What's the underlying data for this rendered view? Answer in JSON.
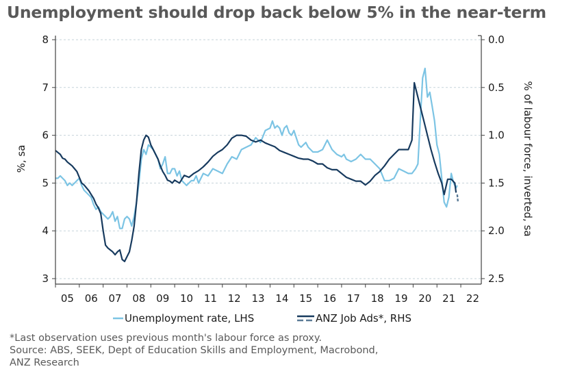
{
  "title": "Unemployment should drop back below 5% in the near-term",
  "footnotes": [
    "*Last observation uses previous month's labour force as proxy.",
    "Source: ABS, SEEK, Dept of Education Skills and Employment, Macrobond,",
    "ANZ Research"
  ],
  "colors": {
    "unemployment": "#7cc4e4",
    "job_ads": "#173a5e",
    "grid": "#c5d3da",
    "axis": "#404040",
    "title": "#595959"
  },
  "chart_data": {
    "type": "line",
    "title": "Unemployment should drop back below 5% in the near-term",
    "xlabel": "",
    "ylabel": "%, sa",
    "ylabel_right": "% of labour force, inverted, sa",
    "xlim": [
      2005.0,
      2022.86
    ],
    "ylim": [
      3,
      8
    ],
    "ylim_right": [
      0.0,
      2.5
    ],
    "right_axis_inverted": true,
    "grid": true,
    "legend_position": "bottom",
    "x_tick_labels": [
      "05",
      "06",
      "07",
      "08",
      "09",
      "10",
      "11",
      "12",
      "13",
      "14",
      "15",
      "16",
      "17",
      "18",
      "19",
      "20",
      "21",
      "22"
    ],
    "y_tick_labels": [
      "3",
      "4",
      "5",
      "6",
      "7",
      "8"
    ],
    "y_ticks": [
      3,
      4,
      5,
      6,
      7,
      8
    ],
    "y_right_tick_labels": [
      "0.0",
      "0.5",
      "1.0",
      "1.5",
      "2.0",
      "2.5"
    ],
    "y_right_ticks": [
      0.0,
      0.5,
      1.0,
      1.5,
      2.0,
      2.5
    ],
    "series": [
      {
        "name": "Unemployment rate, LHS",
        "axis": "left",
        "x": [
          2005.0,
          2005.1,
          2005.2,
          2005.3,
          2005.4,
          2005.5,
          2005.6,
          2005.7,
          2005.8,
          2005.9,
          2006.0,
          2006.1,
          2006.2,
          2006.3,
          2006.4,
          2006.5,
          2006.6,
          2006.7,
          2006.8,
          2006.9,
          2007.0,
          2007.1,
          2007.2,
          2007.3,
          2007.4,
          2007.5,
          2007.6,
          2007.7,
          2007.8,
          2007.9,
          2008.0,
          2008.1,
          2008.2,
          2008.3,
          2008.4,
          2008.5,
          2008.6,
          2008.7,
          2008.8,
          2008.9,
          2009.0,
          2009.1,
          2009.2,
          2009.3,
          2009.4,
          2009.5,
          2009.6,
          2009.7,
          2009.8,
          2009.9,
          2010.0,
          2010.1,
          2010.2,
          2010.3,
          2010.4,
          2010.5,
          2010.6,
          2010.7,
          2010.8,
          2010.9,
          2011.0,
          2011.2,
          2011.4,
          2011.6,
          2011.8,
          2012.0,
          2012.2,
          2012.4,
          2012.6,
          2012.8,
          2013.0,
          2013.2,
          2013.4,
          2013.6,
          2013.8,
          2014.0,
          2014.1,
          2014.2,
          2014.3,
          2014.4,
          2014.5,
          2014.6,
          2014.7,
          2014.8,
          2014.9,
          2015.0,
          2015.1,
          2015.2,
          2015.3,
          2015.4,
          2015.5,
          2015.6,
          2015.8,
          2016.0,
          2016.2,
          2016.4,
          2016.6,
          2016.8,
          2017.0,
          2017.1,
          2017.2,
          2017.4,
          2017.6,
          2017.8,
          2018.0,
          2018.2,
          2018.4,
          2018.6,
          2018.8,
          2019.0,
          2019.2,
          2019.4,
          2019.6,
          2019.8,
          2019.95,
          2020.1,
          2020.2,
          2020.3,
          2020.4,
          2020.5,
          2020.6,
          2020.7,
          2020.8,
          2020.9,
          2021.0,
          2021.1,
          2021.2,
          2021.3,
          2021.4,
          2021.5,
          2021.6,
          2021.7,
          2021.8,
          2021.85
        ],
        "values": [
          5.1,
          5.1,
          5.15,
          5.1,
          5.05,
          4.95,
          5.0,
          4.95,
          5.0,
          5.05,
          5.1,
          4.95,
          4.85,
          4.8,
          4.75,
          4.7,
          4.55,
          4.45,
          4.5,
          4.4,
          4.35,
          4.3,
          4.25,
          4.3,
          4.4,
          4.2,
          4.3,
          4.05,
          4.05,
          4.25,
          4.3,
          4.25,
          4.1,
          4.3,
          4.6,
          5.0,
          5.5,
          5.7,
          5.6,
          5.8,
          5.75,
          5.7,
          5.6,
          5.5,
          5.3,
          5.4,
          5.55,
          5.2,
          5.2,
          5.3,
          5.3,
          5.15,
          5.25,
          5.05,
          5.0,
          4.95,
          5.0,
          5.05,
          5.05,
          5.15,
          5.0,
          5.2,
          5.15,
          5.3,
          5.25,
          5.2,
          5.4,
          5.55,
          5.5,
          5.7,
          5.75,
          5.8,
          5.95,
          5.85,
          6.1,
          6.15,
          6.3,
          6.15,
          6.2,
          6.15,
          6.0,
          6.15,
          6.2,
          6.05,
          6.0,
          6.1,
          5.95,
          5.8,
          5.75,
          5.8,
          5.85,
          5.75,
          5.65,
          5.65,
          5.7,
          5.9,
          5.7,
          5.6,
          5.55,
          5.6,
          5.5,
          5.45,
          5.5,
          5.6,
          5.5,
          5.5,
          5.4,
          5.3,
          5.05,
          5.05,
          5.1,
          5.3,
          5.25,
          5.2,
          5.2,
          5.3,
          5.4,
          6.3,
          7.2,
          7.4,
          6.8,
          6.9,
          6.6,
          6.3,
          5.8,
          5.6,
          5.1,
          4.6,
          4.5,
          4.7,
          5.2,
          5.0,
          4.9,
          4.95
        ],
        "color": "#7cc4e4"
      },
      {
        "name": "ANZ Job Ads*, RHS",
        "axis": "right",
        "x": [
          2005.0,
          2005.1,
          2005.2,
          2005.3,
          2005.4,
          2005.5,
          2005.6,
          2005.7,
          2005.8,
          2005.9,
          2006.0,
          2006.1,
          2006.2,
          2006.3,
          2006.4,
          2006.5,
          2006.6,
          2006.7,
          2006.8,
          2006.9,
          2007.0,
          2007.1,
          2007.2,
          2007.3,
          2007.4,
          2007.5,
          2007.6,
          2007.7,
          2007.8,
          2007.9,
          2008.0,
          2008.1,
          2008.2,
          2008.3,
          2008.4,
          2008.5,
          2008.6,
          2008.7,
          2008.8,
          2008.9,
          2009.0,
          2009.1,
          2009.2,
          2009.3,
          2009.4,
          2009.5,
          2009.6,
          2009.7,
          2009.8,
          2009.9,
          2010.0,
          2010.2,
          2010.4,
          2010.6,
          2010.8,
          2011.0,
          2011.2,
          2011.4,
          2011.6,
          2011.8,
          2012.0,
          2012.2,
          2012.4,
          2012.6,
          2012.8,
          2013.0,
          2013.2,
          2013.4,
          2013.6,
          2013.8,
          2014.0,
          2014.2,
          2014.4,
          2014.6,
          2014.8,
          2015.0,
          2015.2,
          2015.4,
          2015.6,
          2015.8,
          2016.0,
          2016.2,
          2016.4,
          2016.6,
          2016.8,
          2017.0,
          2017.2,
          2017.4,
          2017.6,
          2017.8,
          2018.0,
          2018.2,
          2018.4,
          2018.6,
          2018.8,
          2019.0,
          2019.2,
          2019.4,
          2019.6,
          2019.8,
          2019.95,
          2020.05,
          2020.15,
          2020.3,
          2020.45,
          2020.6,
          2020.75,
          2020.9,
          2021.05,
          2021.2,
          2021.3,
          2021.45,
          2021.6,
          2021.75,
          2021.8
        ],
        "values": [
          1.16,
          1.18,
          1.2,
          1.24,
          1.25,
          1.28,
          1.3,
          1.32,
          1.35,
          1.38,
          1.44,
          1.5,
          1.52,
          1.55,
          1.58,
          1.62,
          1.66,
          1.72,
          1.76,
          1.82,
          2.0,
          2.15,
          2.18,
          2.2,
          2.22,
          2.25,
          2.22,
          2.2,
          2.3,
          2.32,
          2.27,
          2.22,
          2.1,
          1.95,
          1.7,
          1.4,
          1.15,
          1.05,
          1.0,
          1.02,
          1.1,
          1.15,
          1.2,
          1.25,
          1.32,
          1.38,
          1.42,
          1.47,
          1.48,
          1.5,
          1.47,
          1.5,
          1.42,
          1.44,
          1.4,
          1.37,
          1.33,
          1.28,
          1.22,
          1.18,
          1.15,
          1.1,
          1.03,
          1.0,
          1.0,
          1.01,
          1.05,
          1.07,
          1.05,
          1.08,
          1.1,
          1.12,
          1.16,
          1.18,
          1.2,
          1.22,
          1.24,
          1.25,
          1.25,
          1.27,
          1.3,
          1.3,
          1.34,
          1.36,
          1.36,
          1.4,
          1.44,
          1.46,
          1.48,
          1.48,
          1.52,
          1.48,
          1.42,
          1.38,
          1.32,
          1.25,
          1.2,
          1.15,
          1.15,
          1.15,
          1.05,
          0.45,
          0.55,
          0.7,
          0.85,
          1.0,
          1.15,
          1.28,
          1.4,
          1.5,
          1.62,
          1.46,
          1.46,
          1.5,
          1.6
        ],
        "last_observation": {
          "x": 2021.85,
          "value": 1.67,
          "style": "dashed"
        },
        "color": "#173a5e"
      }
    ]
  },
  "legend": [
    {
      "label": "Unemployment rate, LHS"
    },
    {
      "label": "ANZ Job Ads*, RHS"
    }
  ]
}
